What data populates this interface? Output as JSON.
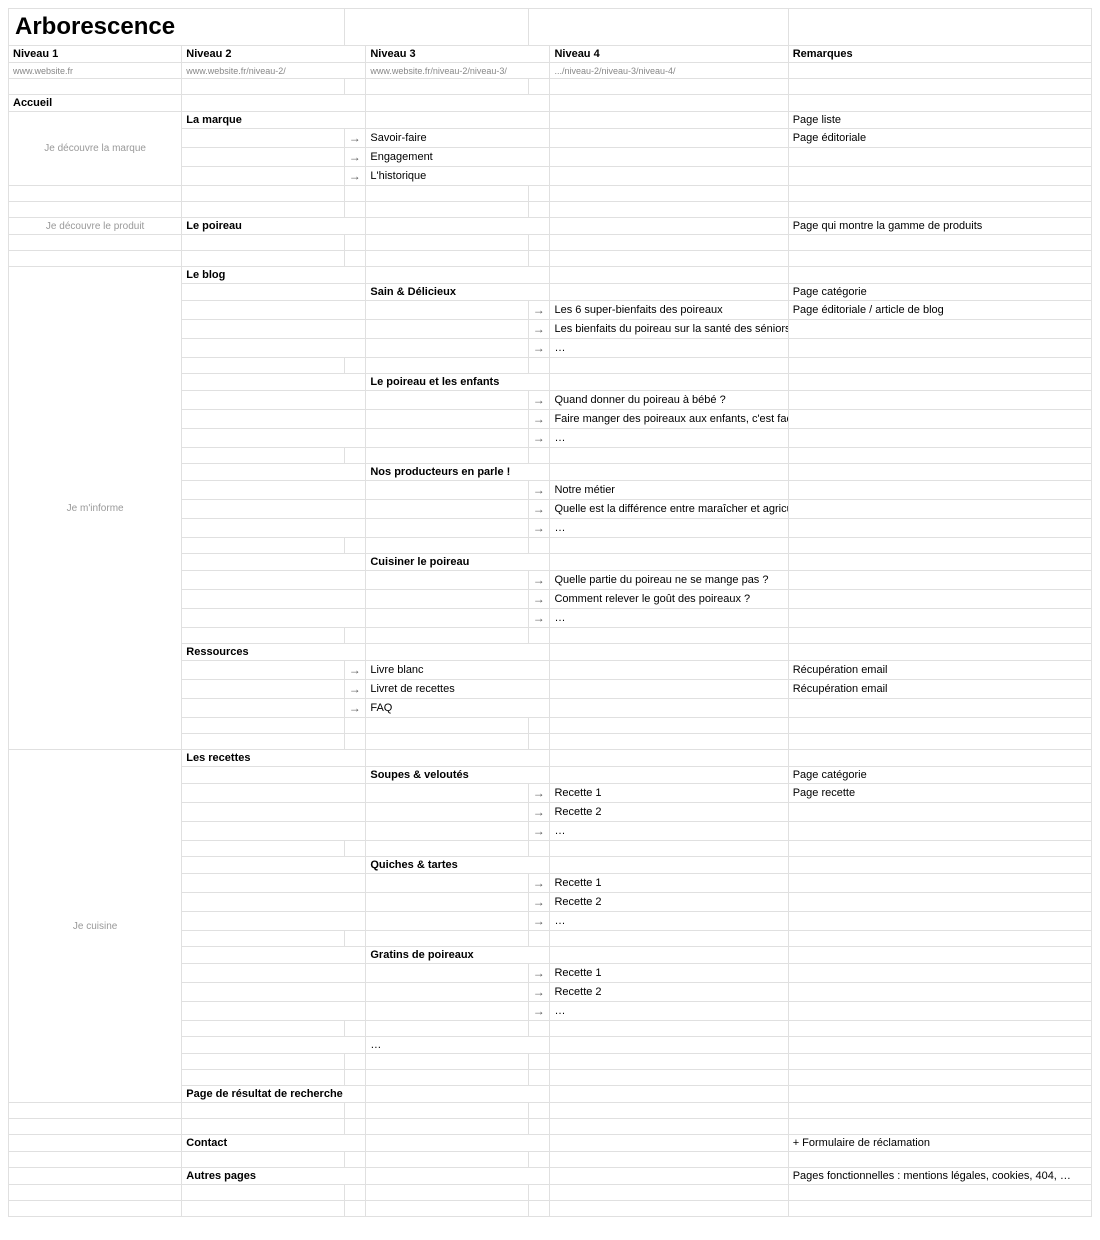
{
  "title": "Arborescence",
  "headers": {
    "n1": "Niveau 1",
    "n2": "Niveau 2",
    "n3": "Niveau 3",
    "n4": "Niveau 4",
    "rem": "Remarques"
  },
  "subheaders": {
    "n1": "www.website.fr",
    "n2": "www.website.fr/niveau-2/",
    "n3": "www.website.fr/niveau-2/niveau-3/",
    "n4": ".../niveau-2/niveau-3/niveau-4/"
  },
  "arrow": "→",
  "ellipsis": "…",
  "rows": [
    {
      "n1": "Accueil",
      "bold": true
    },
    {
      "n1_grey": "Je découvre la marque",
      "n1_rowspan": 4,
      "n2": "La marque",
      "bold2": true,
      "rem": "Page liste"
    },
    {
      "arrow3": true,
      "n3": "Savoir-faire",
      "rem": "Page éditoriale"
    },
    {
      "arrow3": true,
      "n3": "Engagement"
    },
    {
      "arrow3": true,
      "n3": "L'historique"
    },
    {
      "blank": true
    },
    {
      "sep": true
    },
    {
      "n1_grey": "Je découvre le produit",
      "n2": "Le poireau",
      "bold2": true,
      "rem": "Page qui montre la gamme de produits"
    },
    {
      "blank": true
    },
    {
      "sep": true
    },
    {
      "n1_grey": "Je m'informe",
      "n1_rowspan": 27,
      "n2": "Le blog",
      "bold2": true
    },
    {
      "n3": "Sain & Délicieux",
      "bold3": true,
      "rem": "Page catégorie"
    },
    {
      "arrow4": true,
      "n4": "Les 6 super-bienfaits des poireaux",
      "rem": "Page éditoriale / article de blog"
    },
    {
      "arrow4": true,
      "n4": "Les bienfaits du poireau sur la santé des séniors"
    },
    {
      "arrow4": true,
      "n4": "…"
    },
    {
      "blank_in_section": true
    },
    {
      "n3": "Le poireau et les enfants",
      "bold3": true
    },
    {
      "arrow4": true,
      "n4": "Quand donner du poireau à bébé ?"
    },
    {
      "arrow4": true,
      "n4": "Faire manger des poireaux aux enfants, c'est facile !"
    },
    {
      "arrow4": true,
      "n4": "…"
    },
    {
      "blank_in_section": true
    },
    {
      "n3": "Nos producteurs en parle !",
      "bold3": true
    },
    {
      "arrow4": true,
      "n4": "Notre métier"
    },
    {
      "arrow4": true,
      "n4": "Quelle est la différence entre maraîcher et agriculteur ?"
    },
    {
      "arrow4": true,
      "n4": "…"
    },
    {
      "blank_in_section": true
    },
    {
      "n3": "Cuisiner le poireau",
      "bold3": true
    },
    {
      "arrow4": true,
      "n4": "Quelle partie du poireau ne se mange pas ?"
    },
    {
      "arrow4": true,
      "n4": "Comment relever le goût des poireaux ?"
    },
    {
      "arrow4": true,
      "n4": "…"
    },
    {
      "dotsep_in_section": true
    },
    {
      "n2": "Ressources",
      "bold2": true
    },
    {
      "arrow3": true,
      "n3": "Livre blanc",
      "rem": "Récupération email"
    },
    {
      "arrow3": true,
      "n3": "Livret de recettes",
      "rem": "Récupération email"
    },
    {
      "arrow3": true,
      "n3": "FAQ"
    },
    {
      "blank": true
    },
    {
      "sep": true
    },
    {
      "n1_grey": "Je cuisine",
      "n1_rowspan": 20,
      "n2": "Les recettes",
      "bold2": true
    },
    {
      "n3": "Soupes & veloutés",
      "bold3": true,
      "rem": "Page catégorie"
    },
    {
      "arrow4": true,
      "n4": "Recette 1",
      "rem": "Page recette"
    },
    {
      "arrow4": true,
      "n4": "Recette 2"
    },
    {
      "arrow4": true,
      "n4": "…"
    },
    {
      "blank_in_section": true
    },
    {
      "n3": "Quiches & tartes",
      "bold3": true
    },
    {
      "arrow4": true,
      "n4": "Recette 1"
    },
    {
      "arrow4": true,
      "n4": "Recette 2"
    },
    {
      "arrow4": true,
      "n4": "…"
    },
    {
      "blank_in_section": true
    },
    {
      "n3": "Gratins de poireaux",
      "bold3": true
    },
    {
      "arrow4": true,
      "n4": "Recette 1"
    },
    {
      "arrow4": true,
      "n4": "Recette 2"
    },
    {
      "arrow4": true,
      "n4": "…"
    },
    {
      "blank_in_section": true
    },
    {
      "n3": "…"
    },
    {
      "blank_in_section": true
    },
    {
      "dotsep_in_section": true
    },
    {
      "n2": "Page de résultat de recherche",
      "bold2": true
    },
    {
      "blank": true
    },
    {
      "sep": true
    },
    {
      "n2": "Contact",
      "bold2": true,
      "rem": "+ Formulaire de réclamation"
    },
    {
      "blank": true
    },
    {
      "n2": "Autres pages",
      "bold2": true,
      "rem": "Pages fonctionnelles : mentions légales, cookies, 404, …"
    },
    {
      "blank": true
    },
    {
      "blank": true
    }
  ]
}
